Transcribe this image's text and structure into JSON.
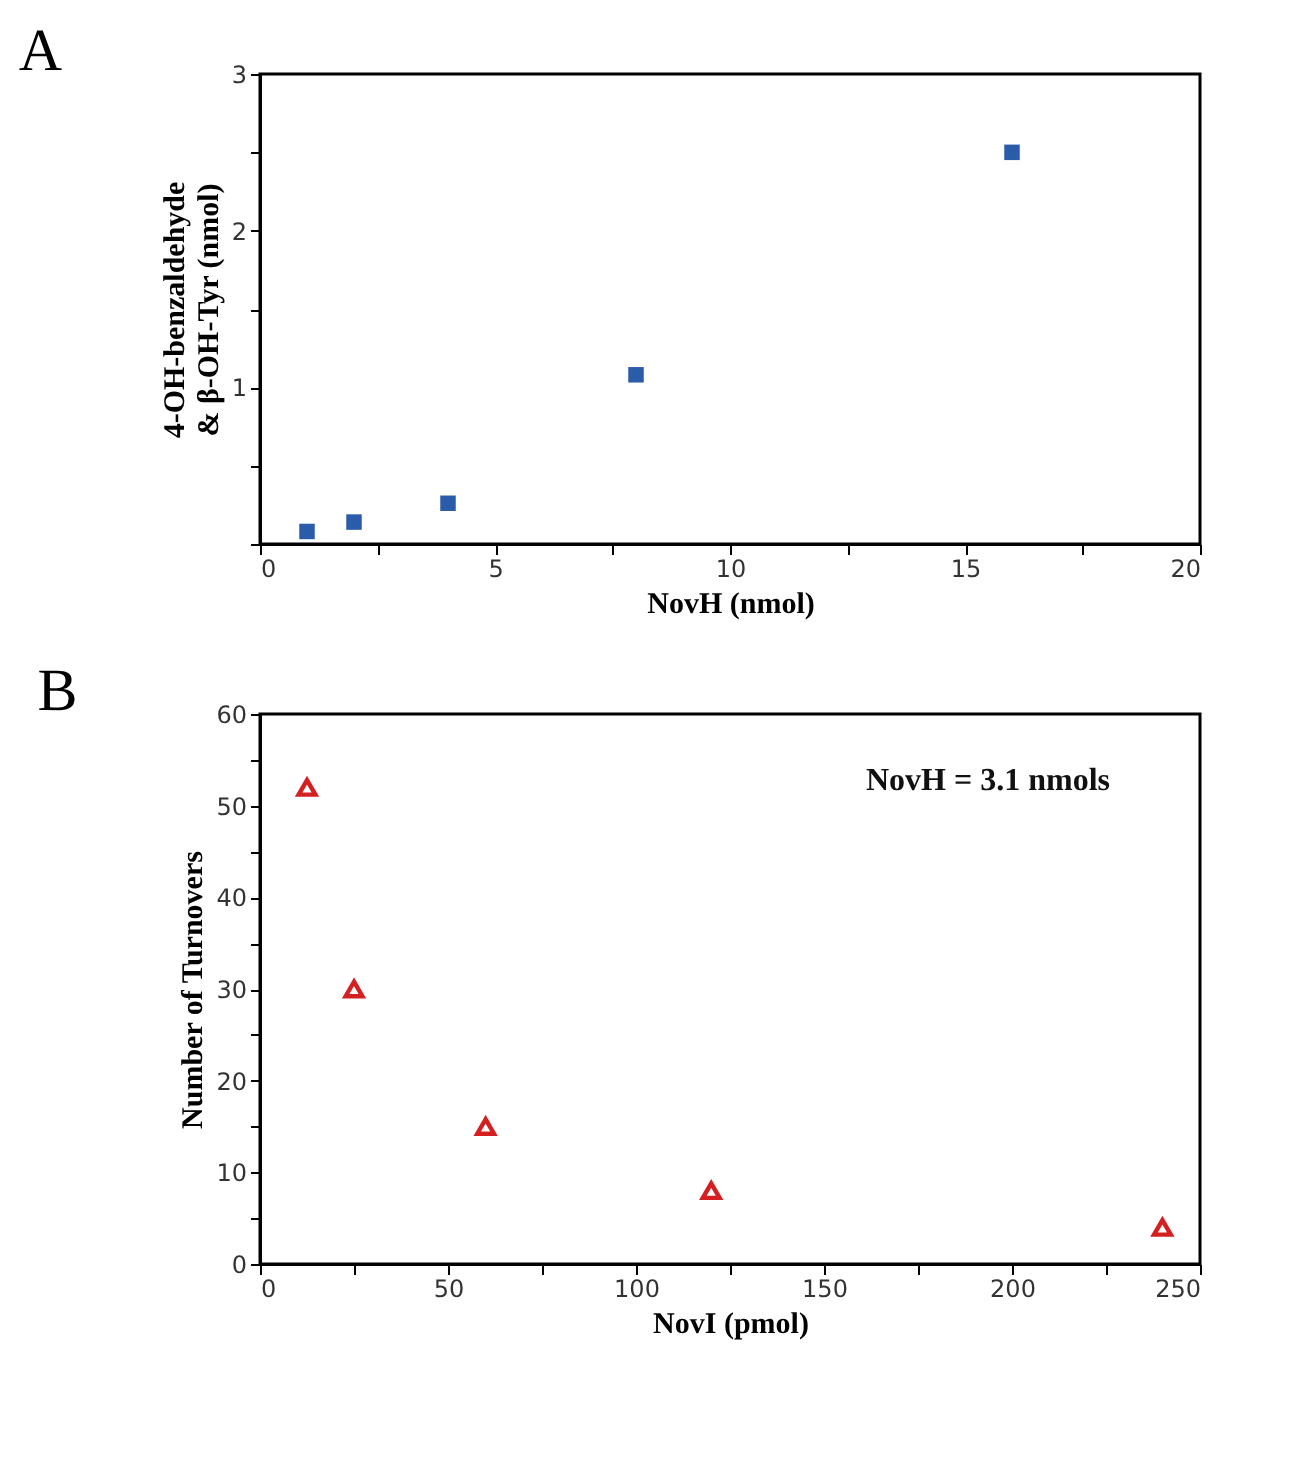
{
  "chart_data": [
    {
      "type": "scatter",
      "title": "A",
      "xlabel": "NovH (nmol)",
      "ylabel": "4-OH-benzaldehyde & β-OH-Tyr (nmol)",
      "x": [
        1,
        2,
        4,
        8,
        16
      ],
      "marker": "square",
      "series": [
        {
          "color": "#2a5caa",
          "values": [
            0.08,
            0.14,
            0.26,
            1.08,
            2.5
          ]
        }
      ],
      "xlim": [
        0,
        20
      ],
      "xticks": [
        0,
        {
          "value": 2.5,
          "label": null
        },
        5,
        {
          "value": 7.5,
          "label": null
        },
        10,
        {
          "value": 12.5,
          "label": null
        },
        15,
        {
          "value": 17.5,
          "label": null
        },
        20
      ],
      "ylim": [
        0,
        3
      ],
      "yticks": [
        {
          "value": 0,
          "label": null
        },
        {
          "value": 0.5,
          "label": null
        },
        1,
        {
          "value": 1.5,
          "label": null
        },
        2,
        {
          "value": 2.5,
          "label": null
        },
        3
      ]
    },
    {
      "type": "scatter",
      "title": "B",
      "xlabel": "NovI (pmol)",
      "ylabel": "Number of Turnovers",
      "x": [
        12.5,
        25,
        60,
        120,
        240
      ],
      "marker": "triangle",
      "series": [
        {
          "color": "#d42020",
          "values": [
            52,
            30,
            15,
            8,
            4
          ]
        }
      ],
      "annotations": [
        "NovH = 3.1 nmols"
      ],
      "xlim": [
        0,
        250
      ],
      "xticks": [
        0,
        {
          "value": 25,
          "label": null
        },
        50,
        {
          "value": 75,
          "label": null
        },
        100,
        {
          "value": 125,
          "label": null
        },
        150,
        {
          "value": 175,
          "label": null
        },
        200,
        {
          "value": 225,
          "label": null
        },
        250
      ],
      "ylim": [
        0,
        60
      ],
      "yticks": [
        0,
        {
          "value": 5,
          "label": null
        },
        10,
        {
          "value": 15,
          "label": null
        },
        20,
        {
          "value": 25,
          "label": null
        },
        30,
        {
          "value": 35,
          "label": null
        },
        40,
        {
          "value": 45,
          "label": null
        },
        50,
        {
          "value": 55,
          "label": null
        },
        60
      ]
    }
  ]
}
